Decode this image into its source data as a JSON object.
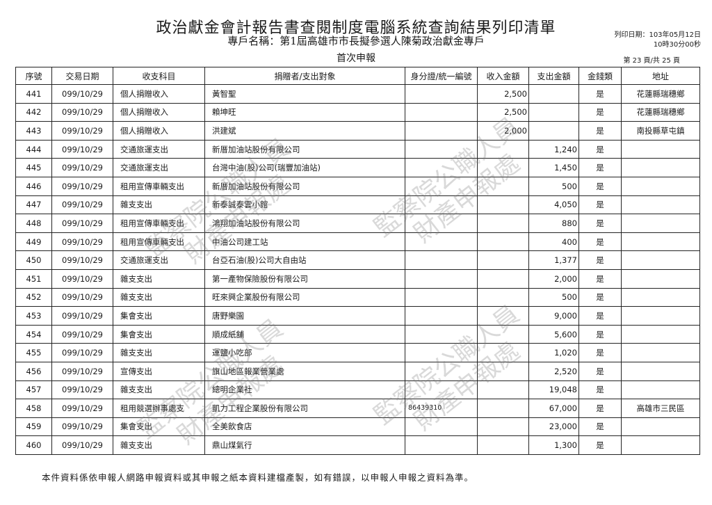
{
  "header": {
    "title": "政治獻金會計報告書查閱制度電腦系統查詢結果列印清單",
    "account_name": "專戶名稱：第1屆高雄市市長擬參選人陳菊政治獻金專戶",
    "report_type": "首次申報",
    "print_date": "列印日期：103年05月12日",
    "print_time": "10時30分00秒",
    "page_info": "第 23 頁/共 25 頁"
  },
  "table": {
    "columns": [
      "序號",
      "交易日期",
      "收支科目",
      "捐贈者/支出對象",
      "身分證/統一編號",
      "收入金額",
      "支出金額",
      "金錢類",
      "地址"
    ],
    "rows": [
      {
        "no": "441",
        "date": "099/10/29",
        "category": "個人捐贈收入",
        "party": "黃智聖",
        "id": "",
        "income": "2,500",
        "expense": "",
        "cash": "是",
        "address": "花蓮縣瑞穗鄉"
      },
      {
        "no": "442",
        "date": "099/10/29",
        "category": "個人捐贈收入",
        "party": "賴坤旺",
        "id": "",
        "income": "2,500",
        "expense": "",
        "cash": "是",
        "address": "花蓮縣瑞穗鄉"
      },
      {
        "no": "443",
        "date": "099/10/29",
        "category": "個人捐贈收入",
        "party": "洪建斌",
        "id": "",
        "income": "2,000",
        "expense": "",
        "cash": "是",
        "address": "南投縣草屯鎮"
      },
      {
        "no": "444",
        "date": "099/10/29",
        "category": "交通旅運支出",
        "party": "新厝加油站股份有限公司",
        "id": "",
        "income": "",
        "expense": "1,240",
        "cash": "是",
        "address": ""
      },
      {
        "no": "445",
        "date": "099/10/29",
        "category": "交通旅運支出",
        "party": "台灣中油(股)公司(瑞豐加油站)",
        "id": "",
        "income": "",
        "expense": "1,450",
        "cash": "是",
        "address": ""
      },
      {
        "no": "446",
        "date": "099/10/29",
        "category": "租用宣傳車輛支出",
        "party": "新厝加油站股份有限公司",
        "id": "",
        "income": "",
        "expense": "500",
        "cash": "是",
        "address": ""
      },
      {
        "no": "447",
        "date": "099/10/29",
        "category": "雜支支出",
        "party": "新泰誠泰雲小館",
        "id": "",
        "income": "",
        "expense": "4,050",
        "cash": "是",
        "address": ""
      },
      {
        "no": "448",
        "date": "099/10/29",
        "category": "租用宣傳車輛支出",
        "party": "鴻翔加油站股份有限公司",
        "id": "",
        "income": "",
        "expense": "880",
        "cash": "是",
        "address": ""
      },
      {
        "no": "449",
        "date": "099/10/29",
        "category": "租用宣傳車輛支出",
        "party": "中油公司建工站",
        "id": "",
        "income": "",
        "expense": "400",
        "cash": "是",
        "address": ""
      },
      {
        "no": "450",
        "date": "099/10/29",
        "category": "交通旅運支出",
        "party": "台亞石油(股)公司大自由站",
        "id": "",
        "income": "",
        "expense": "1,377",
        "cash": "是",
        "address": ""
      },
      {
        "no": "451",
        "date": "099/10/29",
        "category": "雜支支出",
        "party": "第一產物保險股份有限公司",
        "id": "",
        "income": "",
        "expense": "2,000",
        "cash": "是",
        "address": ""
      },
      {
        "no": "452",
        "date": "099/10/29",
        "category": "雜支支出",
        "party": "旺來興企業股份有限公司",
        "id": "",
        "income": "",
        "expense": "500",
        "cash": "是",
        "address": ""
      },
      {
        "no": "453",
        "date": "099/10/29",
        "category": "集會支出",
        "party": "唐野樂園",
        "id": "",
        "income": "",
        "expense": "9,000",
        "cash": "是",
        "address": ""
      },
      {
        "no": "454",
        "date": "099/10/29",
        "category": "集會支出",
        "party": "順成紙舖",
        "id": "",
        "income": "",
        "expense": "5,600",
        "cash": "是",
        "address": ""
      },
      {
        "no": "455",
        "date": "099/10/29",
        "category": "雜支支出",
        "party": "運鹽小吃部",
        "id": "",
        "income": "",
        "expense": "1,020",
        "cash": "是",
        "address": ""
      },
      {
        "no": "456",
        "date": "099/10/29",
        "category": "宣傳支出",
        "party": "旗山地區報業營業處",
        "id": "",
        "income": "",
        "expense": "2,520",
        "cash": "是",
        "address": ""
      },
      {
        "no": "457",
        "date": "099/10/29",
        "category": "雜支支出",
        "party": "總明企業社",
        "id": "",
        "income": "",
        "expense": "19,048",
        "cash": "是",
        "address": ""
      },
      {
        "no": "458",
        "date": "099/10/29",
        "category": "租用競選辦事處支",
        "party": "凱力工程企業股份有限公司",
        "id": "86439310",
        "income": "",
        "expense": "67,000",
        "cash": "是",
        "address": "高雄市三民區"
      },
      {
        "no": "459",
        "date": "099/10/29",
        "category": "集會支出",
        "party": "全美飲食店",
        "id": "",
        "income": "",
        "expense": "23,000",
        "cash": "是",
        "address": ""
      },
      {
        "no": "460",
        "date": "099/10/29",
        "category": "雜支支出",
        "party": "鼎山煤氣行",
        "id": "",
        "income": "",
        "expense": "1,300",
        "cash": "是",
        "address": ""
      }
    ]
  },
  "footer": {
    "note": "本件資料係依申報人網路申報資料或其申報之紙本資料建檔產製，如有錯誤，以申報人申報之資料為準。"
  },
  "watermark": {
    "line1": "監察院公職人員",
    "line2": "財產申報處"
  }
}
